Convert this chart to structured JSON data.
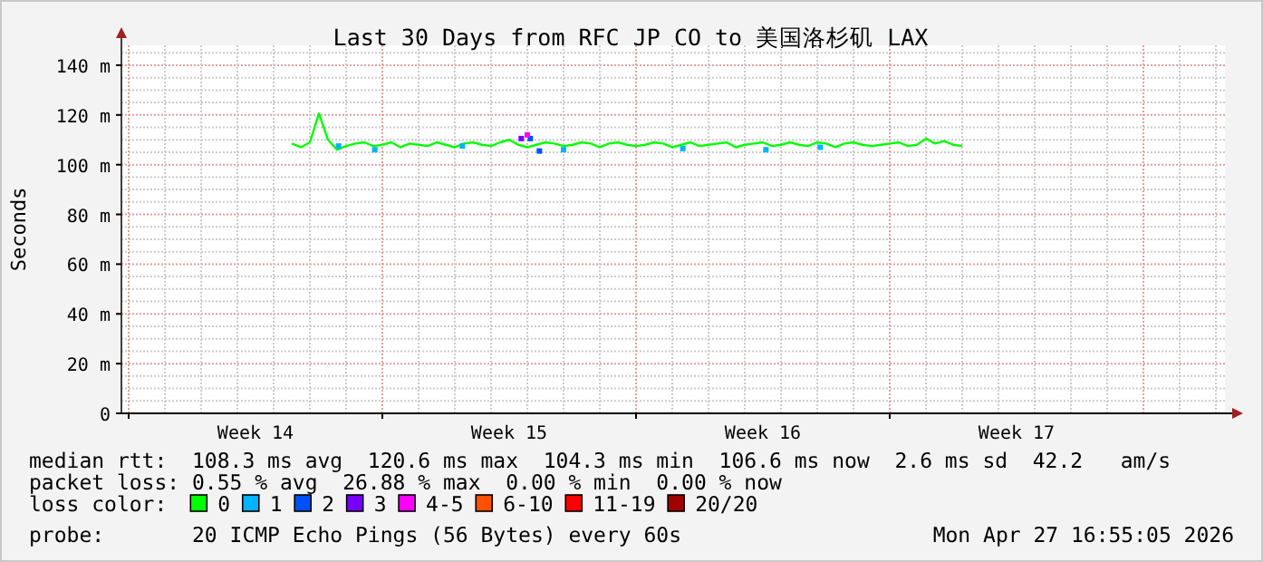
{
  "chart_data": {
    "type": "line",
    "title": "Last 30 Days from RFC JP CO to 美国洛杉矶 LAX",
    "ylabel": "Seconds",
    "xlim": [
      "2026-03-29T19:12",
      "2026-04-29T06:00"
    ],
    "xticks": [
      {
        "value": "2026-03-30",
        "label": null
      },
      {
        "value": "2026-04-02T12:00",
        "label": "Week 14"
      },
      {
        "value": "2026-04-06",
        "label": null
      },
      {
        "value": "2026-04-09T12:00",
        "label": "Week 15"
      },
      {
        "value": "2026-04-13",
        "label": null
      },
      {
        "value": "2026-04-16T12:00",
        "label": "Week 16"
      },
      {
        "value": "2026-04-20",
        "label": null
      },
      {
        "value": "2026-04-23T12:00",
        "label": "Week 17"
      }
    ],
    "ylim": [
      0,
      148
    ],
    "yticks": [
      0,
      {
        "value": 5,
        "label": null
      },
      {
        "value": 10,
        "label": null
      },
      {
        "value": 15,
        "label": null
      },
      {
        "value": 20,
        "label": "20 m"
      },
      {
        "value": 25,
        "label": null
      },
      {
        "value": 30,
        "label": null
      },
      {
        "value": 35,
        "label": null
      },
      {
        "value": 40,
        "label": "40 m"
      },
      {
        "value": 45,
        "label": null
      },
      {
        "value": 50,
        "label": null
      },
      {
        "value": 55,
        "label": null
      },
      {
        "value": 60,
        "label": "60 m"
      },
      {
        "value": 65,
        "label": null
      },
      {
        "value": 70,
        "label": null
      },
      {
        "value": 75,
        "label": null
      },
      {
        "value": 80,
        "label": "80 m"
      },
      {
        "value": 85,
        "label": null
      },
      {
        "value": 90,
        "label": null
      },
      {
        "value": 95,
        "label": null
      },
      {
        "value": 100,
        "label": "100 m"
      },
      {
        "value": 105,
        "label": null
      },
      {
        "value": 110,
        "label": null
      },
      {
        "value": 115,
        "label": null
      },
      {
        "value": 120,
        "label": "120 m"
      },
      {
        "value": 125,
        "label": null
      },
      {
        "value": 130,
        "label": null
      },
      {
        "value": 135,
        "label": null
      },
      {
        "value": 140,
        "label": "140 m"
      },
      {
        "value": 145,
        "label": null
      }
    ],
    "grid": true,
    "legend": "bottom",
    "legend_title": "loss color:",
    "series": [
      {
        "name": "0",
        "color": "#00ff00",
        "x": [
          "2026-04-03T12:00",
          "2026-04-03T18:00",
          "2026-04-04T00:00",
          "2026-04-04T06:00",
          "2026-04-04T12:00",
          "2026-04-04T18:00",
          "2026-04-05T00:00",
          "2026-04-05T06:00",
          "2026-04-05T12:00",
          "2026-04-05T18:00",
          "2026-04-06T00:00",
          "2026-04-06T06:00",
          "2026-04-06T12:00",
          "2026-04-06T18:00",
          "2026-04-07T00:00",
          "2026-04-07T06:00",
          "2026-04-07T12:00",
          "2026-04-07T18:00",
          "2026-04-08T00:00",
          "2026-04-08T06:00",
          "2026-04-08T12:00",
          "2026-04-08T18:00",
          "2026-04-09T00:00",
          "2026-04-09T06:00",
          "2026-04-09T12:00",
          "2026-04-09T18:00",
          "2026-04-10T00:00",
          "2026-04-10T06:00",
          "2026-04-10T12:00",
          "2026-04-10T18:00",
          "2026-04-11T00:00",
          "2026-04-11T06:00",
          "2026-04-11T12:00",
          "2026-04-11T18:00",
          "2026-04-12T00:00",
          "2026-04-12T06:00",
          "2026-04-12T12:00",
          "2026-04-12T18:00",
          "2026-04-13T00:00",
          "2026-04-13T06:00",
          "2026-04-13T12:00",
          "2026-04-13T18:00",
          "2026-04-14T00:00",
          "2026-04-14T06:00",
          "2026-04-14T12:00",
          "2026-04-14T18:00",
          "2026-04-15T00:00",
          "2026-04-15T06:00",
          "2026-04-15T12:00",
          "2026-04-15T18:00",
          "2026-04-16T00:00",
          "2026-04-16T06:00",
          "2026-04-16T12:00",
          "2026-04-16T18:00",
          "2026-04-17T00:00",
          "2026-04-17T06:00",
          "2026-04-17T12:00",
          "2026-04-17T18:00",
          "2026-04-18T00:00",
          "2026-04-18T06:00",
          "2026-04-18T12:00",
          "2026-04-18T18:00",
          "2026-04-19T00:00",
          "2026-04-19T06:00",
          "2026-04-19T12:00",
          "2026-04-19T18:00",
          "2026-04-20T00:00",
          "2026-04-20T06:00",
          "2026-04-20T12:00",
          "2026-04-20T18:00",
          "2026-04-21T00:00",
          "2026-04-21T06:00",
          "2026-04-21T12:00",
          "2026-04-21T18:00",
          "2026-04-22T00:00"
        ],
        "values": [
          108.5,
          107,
          109,
          120.6,
          110,
          106,
          107.5,
          108.5,
          109,
          107.5,
          108,
          109,
          107,
          108.5,
          108,
          107.5,
          109,
          108,
          107,
          108.5,
          109,
          108,
          107.5,
          109,
          110,
          108,
          107,
          108,
          109,
          108.5,
          107.5,
          108,
          109,
          108.5,
          107,
          108.5,
          109,
          108,
          107.5,
          108,
          109,
          108.5,
          107,
          108,
          109,
          107.5,
          108,
          108.5,
          109,
          107,
          108,
          108.5,
          109,
          107.5,
          108,
          109,
          108,
          107.5,
          109,
          108.5,
          107,
          108.5,
          109,
          108,
          107.5,
          108,
          108.5,
          109,
          107.5,
          108,
          110.5,
          108.5,
          109.5,
          108,
          107.5
        ]
      },
      {
        "name": "1",
        "color": "#00b4ff",
        "type": "scatter",
        "marker": "square",
        "x": [
          "2026-04-04T19:00",
          "2026-04-05T19:00",
          "2026-04-08T05:00",
          "2026-04-11T00:00",
          "2026-04-14T07:00",
          "2026-04-16T14:00",
          "2026-04-18T02:00"
        ],
        "values": [
          107.5,
          106,
          107.5,
          106,
          106.5,
          106,
          107
        ]
      },
      {
        "name": "2",
        "color": "#0050ff",
        "type": "scatter",
        "marker": "square",
        "x": [
          "2026-04-10T02:00",
          "2026-04-10T08:00"
        ],
        "values": [
          110.5,
          105.5
        ]
      },
      {
        "name": "3",
        "color": "#7800ff",
        "type": "scatter",
        "marker": "square",
        "x": [
          "2026-04-09T20:00"
        ],
        "values": [
          110.5
        ]
      },
      {
        "name": "4-5",
        "color": "#ff00ff",
        "type": "scatter",
        "marker": "square",
        "x": [
          "2026-04-10T00:00"
        ],
        "values": [
          112
        ]
      },
      {
        "name": "6-10",
        "color": "#ff5000"
      },
      {
        "name": "11-19",
        "color": "#ff0000"
      },
      {
        "name": "20/20",
        "color": "#a00000"
      }
    ],
    "annotations": [
      "median rtt:  108.3 ms avg  120.6 ms max  104.3 ms min  106.6 ms now  2.6 ms sd  42.2   am/s",
      "packet loss: 0.55 % avg  26.88 % max  0.00 % min  0.00 % now",
      "probe:       20 ICMP Echo Pings (56 Bytes) every 60s",
      "Mon Apr 27 16:55:05 2026"
    ]
  }
}
